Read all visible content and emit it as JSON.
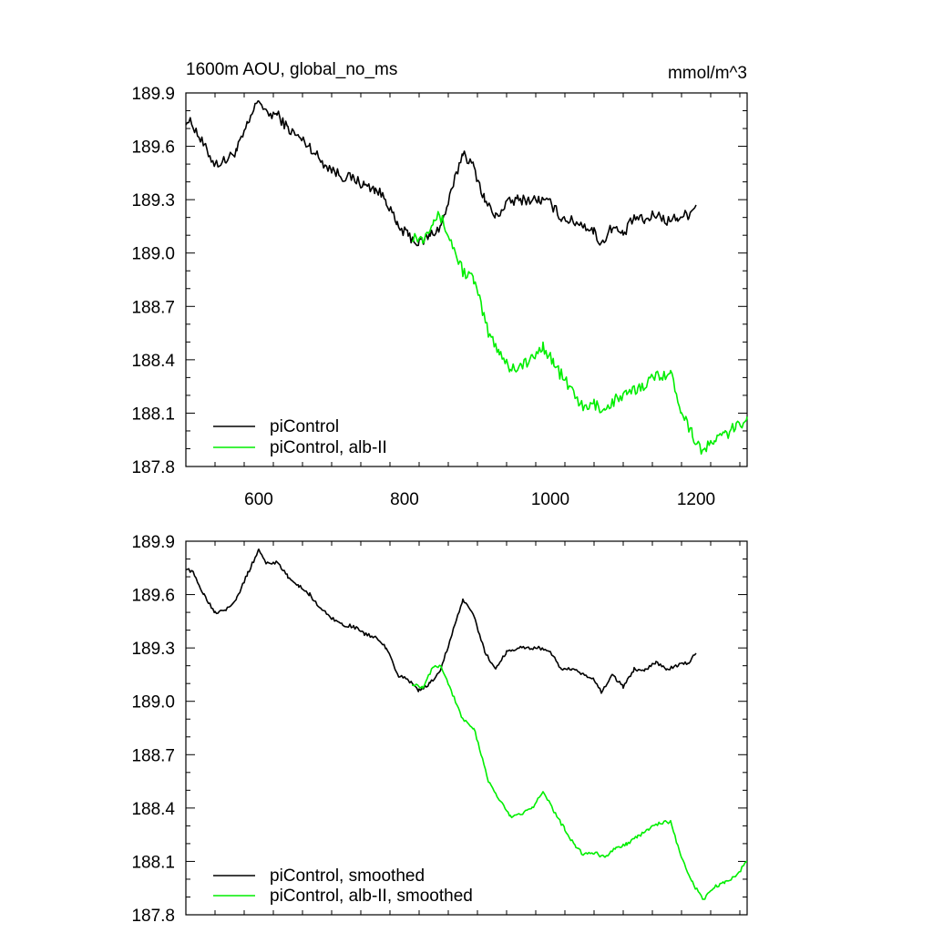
{
  "title_left": "1600m AOU, global_no_ms",
  "title_right": "mmol/m^3",
  "colors": {
    "black_series": "#000000",
    "green_series": "#00ee00"
  },
  "chart_data": [
    {
      "type": "line",
      "xlim": [
        500,
        1270
      ],
      "ylim": [
        187.8,
        189.9
      ],
      "x_ticks": [
        600,
        800,
        1000,
        1200
      ],
      "x_tick_labels": [
        "600",
        "800",
        "1000",
        "1200"
      ],
      "y_ticks": [
        187.8,
        188.1,
        188.4,
        188.7,
        189.0,
        189.3,
        189.6,
        189.9
      ],
      "y_tick_labels": [
        "187.8",
        "188.1",
        "188.4",
        "188.7",
        "189.0",
        "189.3",
        "189.6",
        "189.9"
      ],
      "legend_position": "bottom-left",
      "grid": false,
      "series": [
        {
          "name": "piControl",
          "color": "#000000",
          "noise": 0.03,
          "points": [
            [
              500,
              189.75
            ],
            [
              510,
              189.72
            ],
            [
              525,
              189.6
            ],
            [
              540,
              189.5
            ],
            [
              555,
              189.52
            ],
            [
              570,
              189.58
            ],
            [
              585,
              189.72
            ],
            [
              600,
              189.87
            ],
            [
              610,
              189.78
            ],
            [
              625,
              189.78
            ],
            [
              640,
              189.7
            ],
            [
              655,
              189.65
            ],
            [
              670,
              189.6
            ],
            [
              685,
              189.52
            ],
            [
              700,
              189.47
            ],
            [
              715,
              189.43
            ],
            [
              730,
              189.42
            ],
            [
              745,
              189.38
            ],
            [
              760,
              189.36
            ],
            [
              775,
              189.3
            ],
            [
              790,
              189.15
            ],
            [
              805,
              189.1
            ],
            [
              820,
              189.05
            ],
            [
              835,
              189.1
            ],
            [
              850,
              189.15
            ],
            [
              865,
              189.35
            ],
            [
              880,
              189.57
            ],
            [
              895,
              189.48
            ],
            [
              910,
              189.3
            ],
            [
              925,
              189.2
            ],
            [
              940,
              189.28
            ],
            [
              955,
              189.3
            ],
            [
              970,
              189.3
            ],
            [
              985,
              189.3
            ],
            [
              1000,
              189.28
            ],
            [
              1015,
              189.2
            ],
            [
              1030,
              189.18
            ],
            [
              1045,
              189.16
            ],
            [
              1060,
              189.12
            ],
            [
              1070,
              189.05
            ],
            [
              1085,
              189.15
            ],
            [
              1100,
              189.1
            ],
            [
              1115,
              189.2
            ],
            [
              1130,
              189.18
            ],
            [
              1145,
              189.22
            ],
            [
              1160,
              189.18
            ],
            [
              1175,
              189.2
            ],
            [
              1190,
              189.22
            ],
            [
              1200,
              189.27
            ]
          ]
        },
        {
          "name": "piControl, alb-II",
          "color": "#00ee00",
          "noise": 0.035,
          "points": [
            [
              810,
              189.1
            ],
            [
              825,
              189.08
            ],
            [
              840,
              189.2
            ],
            [
              850,
              189.2
            ],
            [
              860,
              189.1
            ],
            [
              870,
              189.0
            ],
            [
              880,
              188.9
            ],
            [
              895,
              188.85
            ],
            [
              905,
              188.7
            ],
            [
              915,
              188.55
            ],
            [
              930,
              188.45
            ],
            [
              945,
              188.35
            ],
            [
              960,
              188.37
            ],
            [
              975,
              188.4
            ],
            [
              990,
              188.48
            ],
            [
              1005,
              188.38
            ],
            [
              1020,
              188.28
            ],
            [
              1035,
              188.2
            ],
            [
              1045,
              188.12
            ],
            [
              1060,
              188.15
            ],
            [
              1075,
              188.12
            ],
            [
              1090,
              188.18
            ],
            [
              1105,
              188.2
            ],
            [
              1120,
              188.24
            ],
            [
              1135,
              188.28
            ],
            [
              1150,
              188.32
            ],
            [
              1165,
              188.32
            ],
            [
              1180,
              188.12
            ],
            [
              1195,
              187.98
            ],
            [
              1210,
              187.88
            ],
            [
              1225,
              187.95
            ],
            [
              1240,
              187.98
            ],
            [
              1255,
              188.02
            ],
            [
              1270,
              188.08
            ]
          ]
        }
      ]
    },
    {
      "type": "line",
      "xlim": [
        500,
        1270
      ],
      "ylim": [
        187.8,
        189.9
      ],
      "x_ticks": [
        600,
        800,
        1000,
        1200
      ],
      "y_ticks": [
        187.8,
        188.1,
        188.4,
        188.7,
        189.0,
        189.3,
        189.6,
        189.9
      ],
      "y_tick_labels": [
        "187.8",
        "188.1",
        "188.4",
        "188.7",
        "189.0",
        "189.3",
        "189.6",
        "189.9"
      ],
      "legend_position": "bottom-left",
      "grid": false,
      "series": [
        {
          "name": "piControl, smoothed",
          "color": "#000000",
          "noise": 0.01,
          "points": [
            [
              500,
              189.75
            ],
            [
              510,
              189.72
            ],
            [
              525,
              189.6
            ],
            [
              540,
              189.5
            ],
            [
              555,
              189.52
            ],
            [
              570,
              189.58
            ],
            [
              585,
              189.72
            ],
            [
              600,
              189.85
            ],
            [
              610,
              189.78
            ],
            [
              625,
              189.78
            ],
            [
              640,
              189.7
            ],
            [
              655,
              189.65
            ],
            [
              670,
              189.6
            ],
            [
              685,
              189.52
            ],
            [
              700,
              189.47
            ],
            [
              715,
              189.43
            ],
            [
              730,
              189.42
            ],
            [
              745,
              189.38
            ],
            [
              760,
              189.36
            ],
            [
              775,
              189.3
            ],
            [
              790,
              189.15
            ],
            [
              805,
              189.12
            ],
            [
              820,
              189.06
            ],
            [
              835,
              189.1
            ],
            [
              850,
              189.18
            ],
            [
              865,
              189.38
            ],
            [
              880,
              189.57
            ],
            [
              895,
              189.48
            ],
            [
              910,
              189.28
            ],
            [
              925,
              189.18
            ],
            [
              940,
              189.28
            ],
            [
              955,
              189.3
            ],
            [
              970,
              189.3
            ],
            [
              985,
              189.3
            ],
            [
              1000,
              189.28
            ],
            [
              1015,
              189.18
            ],
            [
              1030,
              189.18
            ],
            [
              1045,
              189.15
            ],
            [
              1060,
              189.12
            ],
            [
              1070,
              189.05
            ],
            [
              1085,
              189.15
            ],
            [
              1100,
              189.08
            ],
            [
              1115,
              189.18
            ],
            [
              1130,
              189.18
            ],
            [
              1145,
              189.22
            ],
            [
              1160,
              189.18
            ],
            [
              1175,
              189.2
            ],
            [
              1190,
              189.22
            ],
            [
              1200,
              189.27
            ]
          ]
        },
        {
          "name": "piControl, alb-II, smoothed",
          "color": "#00ee00",
          "noise": 0.01,
          "points": [
            [
              810,
              189.1
            ],
            [
              825,
              189.08
            ],
            [
              840,
              189.2
            ],
            [
              850,
              189.2
            ],
            [
              860,
              189.1
            ],
            [
              870,
              189.0
            ],
            [
              880,
              188.9
            ],
            [
              895,
              188.85
            ],
            [
              905,
              188.7
            ],
            [
              915,
              188.55
            ],
            [
              930,
              188.45
            ],
            [
              945,
              188.35
            ],
            [
              960,
              188.37
            ],
            [
              975,
              188.4
            ],
            [
              990,
              188.5
            ],
            [
              1005,
              188.38
            ],
            [
              1020,
              188.28
            ],
            [
              1035,
              188.18
            ],
            [
              1045,
              188.14
            ],
            [
              1060,
              188.15
            ],
            [
              1075,
              188.12
            ],
            [
              1090,
              188.18
            ],
            [
              1105,
              188.2
            ],
            [
              1120,
              188.24
            ],
            [
              1135,
              188.28
            ],
            [
              1150,
              188.32
            ],
            [
              1165,
              188.32
            ],
            [
              1180,
              188.12
            ],
            [
              1195,
              187.98
            ],
            [
              1210,
              187.88
            ],
            [
              1225,
              187.96
            ],
            [
              1240,
              187.98
            ],
            [
              1255,
              188.02
            ],
            [
              1270,
              188.1
            ]
          ]
        }
      ]
    }
  ]
}
